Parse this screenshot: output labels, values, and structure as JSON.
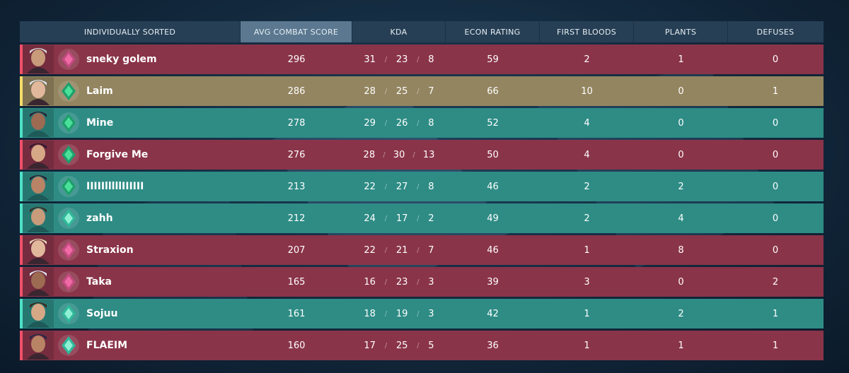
{
  "headers": {
    "sort": "INDIVIDUALLY SORTED",
    "acs": "AVG COMBAT SCORE",
    "kda": "KDA",
    "econ": "ECON RATING",
    "first_bloods": "FIRST BLOODS",
    "plants": "PLANTS",
    "defuses": "DEFUSES"
  },
  "colors": {
    "red_team": "#8a3449",
    "teal_team": "#2e8c85",
    "highlight": "#938560",
    "active_header": "#5b7890"
  },
  "players": [
    {
      "name": "sneky golem",
      "team": "red",
      "agent_icon": "agent-cypher-icon",
      "rank_icon": "rank-immortal-icon",
      "acs": "296",
      "k": "31",
      "d": "23",
      "a": "8",
      "econ": "59",
      "fb": "2",
      "plants": "1",
      "defuses": "0"
    },
    {
      "name": "Laim",
      "team": "highlight",
      "agent_icon": "agent-jett-icon",
      "rank_icon": "rank-diamond-icon",
      "acs": "286",
      "k": "28",
      "d": "25",
      "a": "7",
      "econ": "66",
      "fb": "10",
      "plants": "0",
      "defuses": "1"
    },
    {
      "name": "Mine",
      "team": "teal",
      "agent_icon": "agent-reyna-icon",
      "rank_icon": "rank-diamond-icon",
      "acs": "278",
      "k": "29",
      "d": "26",
      "a": "8",
      "econ": "52",
      "fb": "4",
      "plants": "0",
      "defuses": "0"
    },
    {
      "name": "Forgive Me",
      "team": "red",
      "agent_icon": "agent-reyna-icon",
      "rank_icon": "rank-diamond-icon",
      "acs": "276",
      "k": "28",
      "d": "30",
      "a": "13",
      "econ": "50",
      "fb": "4",
      "plants": "0",
      "defuses": "0"
    },
    {
      "name": "IIIIIlllllIIIIII",
      "team": "teal",
      "agent_icon": "agent-reyna-icon",
      "rank_icon": "rank-diamond-icon",
      "acs": "213",
      "k": "22",
      "d": "27",
      "a": "8",
      "econ": "46",
      "fb": "2",
      "plants": "2",
      "defuses": "0"
    },
    {
      "name": "zahh",
      "team": "teal",
      "agent_icon": "agent-chamber-icon",
      "rank_icon": "rank-ascendant-icon",
      "acs": "212",
      "k": "24",
      "d": "17",
      "a": "2",
      "econ": "49",
      "fb": "2",
      "plants": "4",
      "defuses": "0"
    },
    {
      "name": "Straxion",
      "team": "red",
      "agent_icon": "agent-sova-icon",
      "rank_icon": "rank-immortal-icon",
      "acs": "207",
      "k": "22",
      "d": "21",
      "a": "7",
      "econ": "46",
      "fb": "1",
      "plants": "8",
      "defuses": "0"
    },
    {
      "name": "Taka",
      "team": "red",
      "agent_icon": "agent-jett-icon",
      "rank_icon": "rank-immortal-icon",
      "acs": "165",
      "k": "16",
      "d": "23",
      "a": "3",
      "econ": "39",
      "fb": "3",
      "plants": "0",
      "defuses": "2"
    },
    {
      "name": "Sojuu",
      "team": "teal",
      "agent_icon": "agent-raze-icon",
      "rank_icon": "rank-ascendant-icon",
      "acs": "161",
      "k": "18",
      "d": "19",
      "a": "3",
      "econ": "42",
      "fb": "1",
      "plants": "2",
      "defuses": "1"
    },
    {
      "name": "FLAEIM",
      "team": "red",
      "agent_icon": "agent-neon-icon",
      "rank_icon": "rank-ascendant-icon",
      "acs": "160",
      "k": "17",
      "d": "25",
      "a": "5",
      "econ": "36",
      "fb": "1",
      "plants": "1",
      "defuses": "1"
    }
  ]
}
